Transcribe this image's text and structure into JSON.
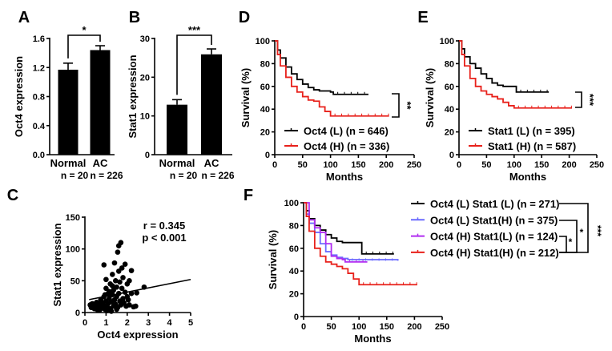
{
  "chart_data": [
    {
      "panel": "A",
      "type": "bar",
      "categories": [
        "Normal",
        "AC"
      ],
      "category_sublabels": [
        "n = 20",
        "n = 226"
      ],
      "values": [
        1.17,
        1.44
      ],
      "error_upper": [
        1.26,
        1.5
      ],
      "ylabel": "Oct4 expression",
      "ylim": [
        0,
        1.6
      ],
      "yticks": [
        "0.0",
        "0.4",
        "0.8",
        "1.2",
        "1.6"
      ],
      "significance": "*",
      "color": "#000000"
    },
    {
      "panel": "B",
      "type": "bar",
      "categories": [
        "Normal",
        "AC"
      ],
      "category_sublabels": [
        "n = 20",
        "n = 226"
      ],
      "values": [
        12.9,
        25.9
      ],
      "error_upper": [
        14.2,
        27.3
      ],
      "ylabel": "Stat1 expression",
      "ylim": [
        0,
        30
      ],
      "yticks": [
        "0",
        "10",
        "20",
        "30"
      ],
      "significance": "***",
      "color": "#000000"
    },
    {
      "panel": "C",
      "type": "scatter",
      "xlabel": "Oct4 expression",
      "ylabel": "Stat1 expression",
      "xlim": [
        0,
        5
      ],
      "ylim": [
        0,
        150
      ],
      "xticks": [
        "0",
        "1",
        "2",
        "3",
        "4",
        "5"
      ],
      "yticks": [
        "0",
        "50",
        "100",
        "150"
      ],
      "annotations": [
        "r = 0.345",
        "p < 0.001"
      ],
      "fit_line": {
        "slope": 6.6,
        "intercept": 19
      },
      "points": [
        [
          0.25,
          12
        ],
        [
          0.3,
          8
        ],
        [
          0.35,
          14
        ],
        [
          0.4,
          10
        ],
        [
          0.45,
          6
        ],
        [
          0.5,
          12
        ],
        [
          0.55,
          16
        ],
        [
          0.6,
          4
        ],
        [
          0.65,
          9
        ],
        [
          0.7,
          13
        ],
        [
          0.75,
          20
        ],
        [
          0.8,
          7
        ],
        [
          0.85,
          15
        ],
        [
          0.9,
          11
        ],
        [
          0.9,
          25
        ],
        [
          0.95,
          5
        ],
        [
          1.0,
          18
        ],
        [
          1.0,
          38
        ],
        [
          1.0,
          52
        ],
        [
          1.05,
          9
        ],
        [
          1.1,
          14
        ],
        [
          1.1,
          30
        ],
        [
          1.15,
          22
        ],
        [
          1.2,
          6
        ],
        [
          1.2,
          45
        ],
        [
          1.25,
          17
        ],
        [
          1.3,
          28
        ],
        [
          1.3,
          60
        ],
        [
          1.35,
          10
        ],
        [
          1.35,
          35
        ],
        [
          1.4,
          20
        ],
        [
          1.4,
          78
        ],
        [
          1.45,
          13
        ],
        [
          1.45,
          50
        ],
        [
          1.5,
          25
        ],
        [
          1.5,
          40
        ],
        [
          1.55,
          8
        ],
        [
          1.55,
          95
        ],
        [
          1.6,
          30
        ],
        [
          1.6,
          65
        ],
        [
          1.6,
          105
        ],
        [
          1.65,
          18
        ],
        [
          1.65,
          48
        ],
        [
          1.7,
          110
        ],
        [
          1.7,
          12
        ],
        [
          1.75,
          38
        ],
        [
          1.75,
          70
        ],
        [
          1.8,
          22
        ],
        [
          1.8,
          55
        ],
        [
          1.85,
          15
        ],
        [
          1.9,
          32
        ],
        [
          1.9,
          76
        ],
        [
          1.95,
          10
        ],
        [
          2.0,
          45
        ],
        [
          2.0,
          25
        ],
        [
          2.05,
          20
        ],
        [
          2.1,
          50
        ],
        [
          2.1,
          12
        ],
        [
          2.2,
          66
        ],
        [
          2.2,
          30
        ],
        [
          2.3,
          9
        ],
        [
          2.4,
          10
        ],
        [
          2.45,
          31
        ],
        [
          2.8,
          40
        ],
        [
          0.9,
          75
        ],
        [
          1.05,
          3
        ],
        [
          1.25,
          2
        ],
        [
          0.7,
          4
        ],
        [
          1.5,
          5
        ],
        [
          1.3,
          42
        ],
        [
          1.15,
          33
        ],
        [
          0.95,
          28
        ]
      ]
    },
    {
      "panel": "D",
      "type": "line",
      "xlabel": "Months",
      "ylabel": "Survival (%)",
      "xlim": [
        0,
        250
      ],
      "ylim": [
        0,
        100
      ],
      "xticks": [
        "0",
        "50",
        "100",
        "150",
        "200",
        "250"
      ],
      "yticks": [
        "0",
        "20",
        "40",
        "60",
        "80",
        "100"
      ],
      "legend_position": "bottom-left",
      "significance": "**",
      "series": [
        {
          "name": "Oct4 (L) (n = 646)",
          "color": "#000000",
          "points": [
            [
              0,
              100
            ],
            [
              5,
              92
            ],
            [
              10,
              85
            ],
            [
              20,
              77
            ],
            [
              30,
              71
            ],
            [
              40,
              66
            ],
            [
              50,
              62
            ],
            [
              60,
              59
            ],
            [
              70,
              57
            ],
            [
              80,
              56
            ],
            [
              100,
              55
            ],
            [
              105,
              53
            ],
            [
              168,
              53
            ]
          ]
        },
        {
          "name": "Oct4 (H) (n = 336)",
          "color": "#e8211b",
          "points": [
            [
              0,
              100
            ],
            [
              5,
              88
            ],
            [
              10,
              78
            ],
            [
              20,
              68
            ],
            [
              30,
              60
            ],
            [
              40,
              55
            ],
            [
              50,
              51
            ],
            [
              60,
              48
            ],
            [
              70,
              47
            ],
            [
              80,
              42
            ],
            [
              90,
              38
            ],
            [
              100,
              34
            ],
            [
              205,
              34
            ]
          ]
        }
      ]
    },
    {
      "panel": "E",
      "type": "line",
      "xlabel": "Months",
      "ylabel": "Survival (%)",
      "xlim": [
        0,
        250
      ],
      "ylim": [
        0,
        100
      ],
      "xticks": [
        "0",
        "50",
        "100",
        "150",
        "200",
        "250"
      ],
      "yticks": [
        "0",
        "20",
        "40",
        "60",
        "80",
        "100"
      ],
      "legend_position": "bottom-left",
      "significance": "***",
      "series": [
        {
          "name": "Stat1 (L) (n = 395)",
          "color": "#000000",
          "points": [
            [
              0,
              100
            ],
            [
              5,
              93
            ],
            [
              10,
              86
            ],
            [
              20,
              80
            ],
            [
              30,
              76
            ],
            [
              40,
              71
            ],
            [
              50,
              67
            ],
            [
              60,
              63
            ],
            [
              70,
              61
            ],
            [
              80,
              60
            ],
            [
              100,
              60
            ],
            [
              104,
              55
            ],
            [
              163,
              55
            ]
          ]
        },
        {
          "name": "Stat1 (H) (n = 587)",
          "color": "#e8211b",
          "points": [
            [
              0,
              100
            ],
            [
              5,
              88
            ],
            [
              10,
              78
            ],
            [
              20,
              67
            ],
            [
              30,
              60
            ],
            [
              40,
              56
            ],
            [
              50,
              53
            ],
            [
              60,
              51
            ],
            [
              70,
              49
            ],
            [
              80,
              46
            ],
            [
              90,
              43
            ],
            [
              100,
              41
            ],
            [
              205,
              41
            ]
          ]
        }
      ]
    },
    {
      "panel": "F",
      "type": "line",
      "xlabel": "Months",
      "ylabel": "Survival (%)",
      "xlim": [
        0,
        250
      ],
      "ylim": [
        0,
        100
      ],
      "xticks": [
        "0",
        "50",
        "100",
        "150",
        "200",
        "250"
      ],
      "yticks": [
        "0",
        "20",
        "40",
        "60",
        "80",
        "100"
      ],
      "legend_position": "right",
      "significance": [
        "*",
        "*",
        "***"
      ],
      "series": [
        {
          "name": "Oct4 (L) Stat1 (L) (n = 271)",
          "color": "#000000",
          "points": [
            [
              0,
              100
            ],
            [
              5,
              93
            ],
            [
              10,
              86
            ],
            [
              20,
              80
            ],
            [
              30,
              76
            ],
            [
              40,
              72
            ],
            [
              50,
              69
            ],
            [
              60,
              66
            ],
            [
              70,
              65
            ],
            [
              100,
              65
            ],
            [
              105,
              55
            ],
            [
              163,
              55
            ]
          ]
        },
        {
          "name": "Oct4 (L) Stat1(H) (n = 375)",
          "color": "#6b6bff",
          "points": [
            [
              0,
              100
            ],
            [
              5,
              90
            ],
            [
              10,
              82
            ],
            [
              20,
              74
            ],
            [
              30,
              64
            ],
            [
              40,
              57
            ],
            [
              50,
              54
            ],
            [
              60,
              52
            ],
            [
              70,
              51
            ],
            [
              80,
              50
            ],
            [
              170,
              49
            ]
          ]
        },
        {
          "name": "Oct4 (H) Stat1(L) (n = 124)",
          "color": "#b02cf0",
          "points": [
            [
              0,
              100
            ],
            [
              10,
              85
            ],
            [
              20,
              78
            ],
            [
              30,
              74
            ],
            [
              40,
              64
            ],
            [
              50,
              53
            ],
            [
              60,
              51
            ],
            [
              70,
              50
            ],
            [
              75,
              48
            ],
            [
              115,
              48
            ]
          ]
        },
        {
          "name": "Oct4 (H) Stat1(H) (n = 212)",
          "color": "#e8211b",
          "points": [
            [
              0,
              100
            ],
            [
              5,
              88
            ],
            [
              10,
              75
            ],
            [
              20,
              60
            ],
            [
              30,
              53
            ],
            [
              40,
              48
            ],
            [
              50,
              46
            ],
            [
              60,
              44
            ],
            [
              70,
              42
            ],
            [
              80,
              38
            ],
            [
              90,
              33
            ],
            [
              100,
              28
            ],
            [
              205,
              28
            ]
          ]
        }
      ]
    }
  ]
}
